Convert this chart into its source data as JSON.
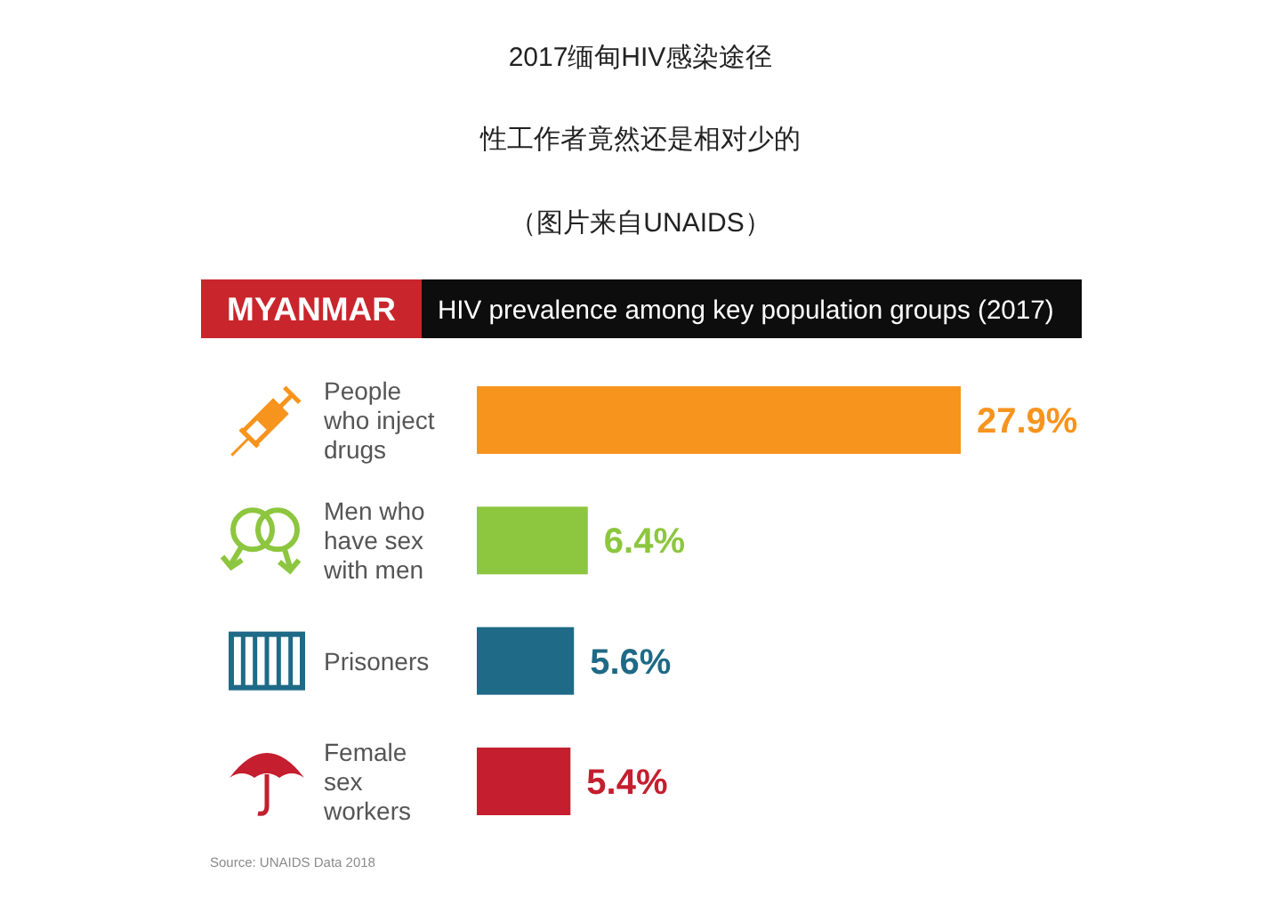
{
  "chart_data": {
    "type": "bar",
    "orientation": "horizontal",
    "title": "2017缅甸HIV感染途径",
    "subtitle": "性工作者竟然还是相对少的",
    "annotations": [
      "（图片来自UNAIDS）",
      "MYANMAR",
      "HIV prevalence among key population groups (2017)",
      "Source: UNAIDS Data 2018"
    ],
    "categories": [
      "People who inject drugs",
      "Men who have sex with men",
      "Prisoners",
      "Female sex workers"
    ],
    "values": [
      27.9,
      6.4,
      5.6,
      5.4
    ],
    "colors": [
      "#f7941d",
      "#8dc63f",
      "#1f6a86",
      "#c41e2f"
    ],
    "value_labels": [
      "27.9%",
      "6.4%",
      "5.6%",
      "5.4%"
    ]
  }
}
